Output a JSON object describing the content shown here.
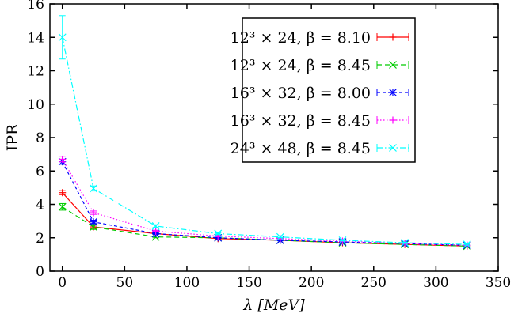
{
  "chart_data": {
    "type": "line",
    "title": "",
    "xlabel": "λ [MeV]",
    "ylabel": "IPR",
    "xlim": [
      -10,
      350
    ],
    "ylim": [
      0,
      16
    ],
    "xticks": [
      0,
      50,
      100,
      150,
      200,
      250,
      300,
      350
    ],
    "yticks": [
      0,
      2,
      4,
      6,
      8,
      10,
      12,
      14,
      16
    ],
    "grid": false,
    "legend_placement": "top-right",
    "x": [
      0,
      25,
      75,
      125,
      175,
      225,
      275,
      325
    ],
    "series": [
      {
        "name": "12³ × 24, β = 8.10",
        "color": "#ff0000",
        "dash": "solid",
        "marker": "plus",
        "values": [
          4.7,
          2.65,
          2.25,
          1.95,
          1.85,
          1.7,
          1.6,
          1.5
        ],
        "errors": [
          0.12,
          0.1,
          0.05,
          0.04,
          0.03,
          0.03,
          0.03,
          0.03
        ]
      },
      {
        "name": "12³ × 24, β = 8.45",
        "color": "#00cc00",
        "dash": "dashed",
        "marker": "cross",
        "values": [
          3.85,
          2.65,
          2.05,
          2.0,
          1.85,
          1.7,
          1.6,
          1.5
        ],
        "errors": [
          0.2,
          0.15,
          0.05,
          0.04,
          0.03,
          0.03,
          0.03,
          0.03
        ]
      },
      {
        "name": "16³ × 32, β = 8.00",
        "color": "#0000ff",
        "dash": "short-dashed",
        "marker": "star",
        "values": [
          6.55,
          2.95,
          2.25,
          2.0,
          1.85,
          1.75,
          1.65,
          1.55
        ],
        "errors": [
          0.15,
          0.1,
          0.05,
          0.04,
          0.03,
          0.03,
          0.03,
          0.03
        ]
      },
      {
        "name": "16³ × 32, β = 8.45",
        "color": "#ff00ff",
        "dash": "dotted",
        "marker": "plus",
        "values": [
          6.7,
          3.5,
          2.4,
          2.1,
          1.95,
          1.8,
          1.65,
          1.55
        ],
        "errors": [
          0.15,
          0.1,
          0.05,
          0.04,
          0.03,
          0.03,
          0.03,
          0.03
        ]
      },
      {
        "name": "24³ × 48, β = 8.45",
        "color": "#00ffff",
        "dash": "dash-dot",
        "marker": "cross",
        "values": [
          14.0,
          4.95,
          2.7,
          2.25,
          2.05,
          1.85,
          1.7,
          1.6
        ],
        "errors": [
          1.3,
          0.15,
          0.08,
          0.05,
          0.04,
          0.03,
          0.03,
          0.03
        ]
      }
    ]
  }
}
